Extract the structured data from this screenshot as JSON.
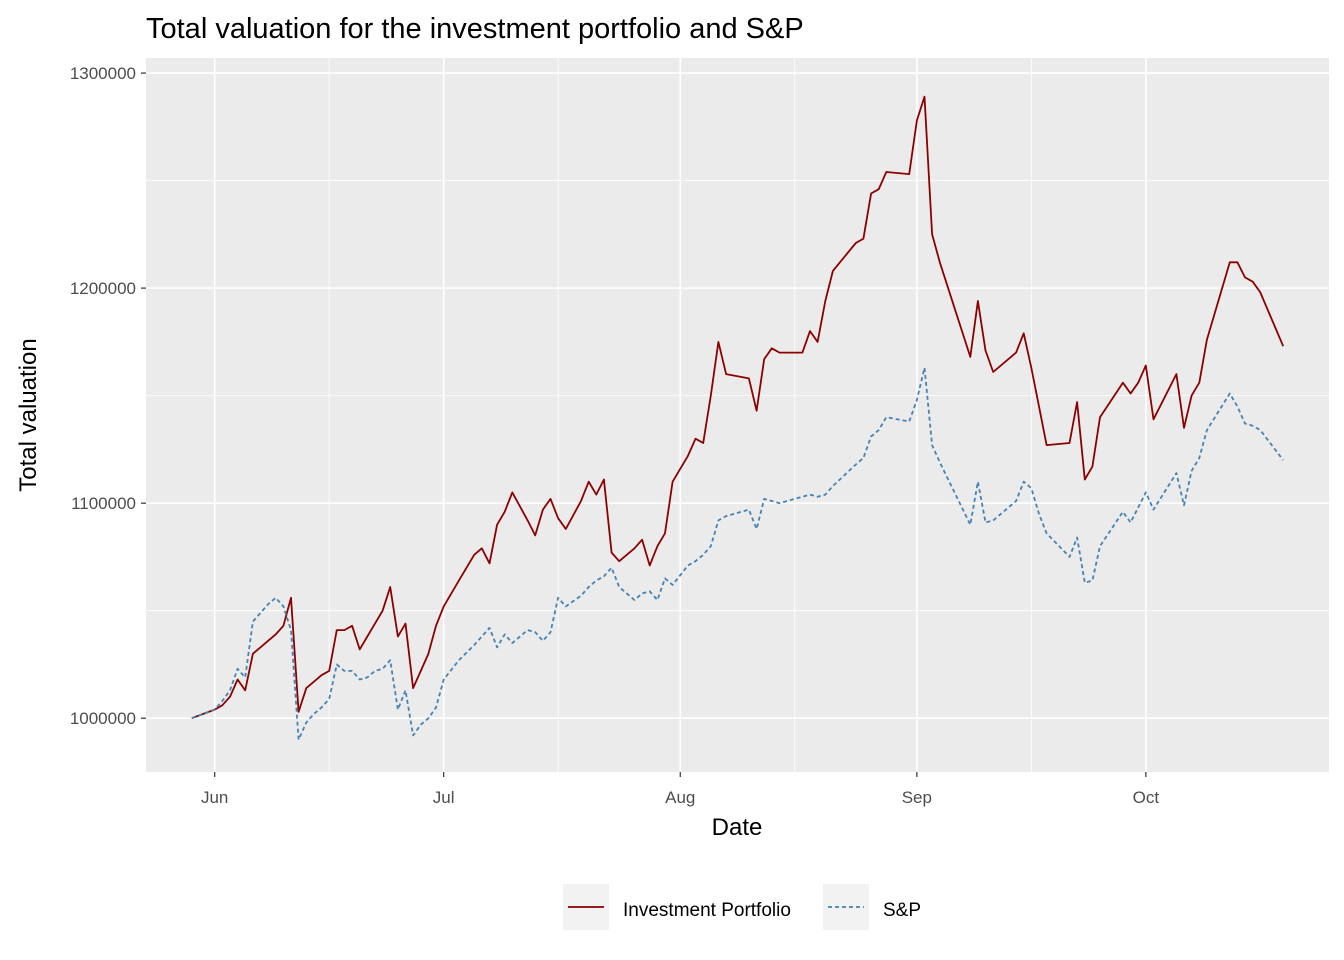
{
  "chart_data": {
    "type": "line",
    "title": "Total valuation for the investment portfolio and S&P",
    "xlabel": "Date",
    "ylabel": "Total valuation",
    "x_tick_labels": [
      {
        "date": "2020-06-01",
        "label": "Jun"
      },
      {
        "date": "2020-07-01",
        "label": "Jul"
      },
      {
        "date": "2020-08-01",
        "label": "Aug"
      },
      {
        "date": "2020-09-01",
        "label": "Sep"
      },
      {
        "date": "2020-10-01",
        "label": "Oct"
      }
    ],
    "y_ticks": [
      1000000,
      1100000,
      1200000,
      1300000
    ],
    "y_tick_labels": [
      "1000000",
      "1100000",
      "1200000",
      "1300000"
    ],
    "xlim": [
      "2020-05-23",
      "2020-10-25"
    ],
    "ylim": [
      975000,
      1307000
    ],
    "grid": true,
    "legend_position": "bottom",
    "series": [
      {
        "name": "Investment Portfolio",
        "color": "#8B0000",
        "dash": "solid",
        "points": [
          [
            "2020-05-29",
            1000000
          ],
          [
            "2020-06-01",
            1004000
          ],
          [
            "2020-06-02",
            1006000
          ],
          [
            "2020-06-03",
            1010000
          ],
          [
            "2020-06-04",
            1018000
          ],
          [
            "2020-06-05",
            1013000
          ],
          [
            "2020-06-06",
            1030000
          ],
          [
            "2020-06-07",
            1033000
          ],
          [
            "2020-06-08",
            1036000
          ],
          [
            "2020-06-09",
            1039000
          ],
          [
            "2020-06-10",
            1043000
          ],
          [
            "2020-06-11",
            1056000
          ],
          [
            "2020-06-12",
            1003000
          ],
          [
            "2020-06-13",
            1014000
          ],
          [
            "2020-06-14",
            1017000
          ],
          [
            "2020-06-15",
            1020000
          ],
          [
            "2020-06-16",
            1022000
          ],
          [
            "2020-06-17",
            1041000
          ],
          [
            "2020-06-18",
            1041000
          ],
          [
            "2020-06-19",
            1043000
          ],
          [
            "2020-06-20",
            1032000
          ],
          [
            "2020-06-21",
            1038000
          ],
          [
            "2020-06-22",
            1044000
          ],
          [
            "2020-06-23",
            1050000
          ],
          [
            "2020-06-24",
            1061000
          ],
          [
            "2020-06-25",
            1038000
          ],
          [
            "2020-06-26",
            1044000
          ],
          [
            "2020-06-27",
            1014000
          ],
          [
            "2020-06-28",
            1022000
          ],
          [
            "2020-06-29",
            1030000
          ],
          [
            "2020-06-30",
            1043000
          ],
          [
            "2020-07-01",
            1052000
          ],
          [
            "2020-07-03",
            1064000
          ],
          [
            "2020-07-05",
            1076000
          ],
          [
            "2020-07-06",
            1079000
          ],
          [
            "2020-07-07",
            1072000
          ],
          [
            "2020-07-08",
            1090000
          ],
          [
            "2020-07-09",
            1096000
          ],
          [
            "2020-07-10",
            1105000
          ],
          [
            "2020-07-12",
            1092000
          ],
          [
            "2020-07-13",
            1085000
          ],
          [
            "2020-07-14",
            1097000
          ],
          [
            "2020-07-15",
            1102000
          ],
          [
            "2020-07-16",
            1093000
          ],
          [
            "2020-07-17",
            1088000
          ],
          [
            "2020-07-19",
            1101000
          ],
          [
            "2020-07-20",
            1110000
          ],
          [
            "2020-07-21",
            1104000
          ],
          [
            "2020-07-22",
            1111000
          ],
          [
            "2020-07-23",
            1077000
          ],
          [
            "2020-07-24",
            1073000
          ],
          [
            "2020-07-26",
            1079000
          ],
          [
            "2020-07-27",
            1083000
          ],
          [
            "2020-07-28",
            1071000
          ],
          [
            "2020-07-29",
            1080000
          ],
          [
            "2020-07-30",
            1086000
          ],
          [
            "2020-07-31",
            1110000
          ],
          [
            "2020-08-02",
            1122000
          ],
          [
            "2020-08-03",
            1130000
          ],
          [
            "2020-08-04",
            1128000
          ],
          [
            "2020-08-05",
            1150000
          ],
          [
            "2020-08-06",
            1175000
          ],
          [
            "2020-08-07",
            1160000
          ],
          [
            "2020-08-10",
            1158000
          ],
          [
            "2020-08-11",
            1143000
          ],
          [
            "2020-08-12",
            1167000
          ],
          [
            "2020-08-13",
            1172000
          ],
          [
            "2020-08-14",
            1170000
          ],
          [
            "2020-08-17",
            1170000
          ],
          [
            "2020-08-18",
            1180000
          ],
          [
            "2020-08-19",
            1175000
          ],
          [
            "2020-08-20",
            1194000
          ],
          [
            "2020-08-21",
            1208000
          ],
          [
            "2020-08-24",
            1221000
          ],
          [
            "2020-08-25",
            1223000
          ],
          [
            "2020-08-26",
            1244000
          ],
          [
            "2020-08-27",
            1246000
          ],
          [
            "2020-08-28",
            1254000
          ],
          [
            "2020-08-31",
            1253000
          ],
          [
            "2020-09-01",
            1278000
          ],
          [
            "2020-09-02",
            1289000
          ],
          [
            "2020-09-03",
            1225000
          ],
          [
            "2020-09-04",
            1212000
          ],
          [
            "2020-09-08",
            1168000
          ],
          [
            "2020-09-09",
            1194000
          ],
          [
            "2020-09-10",
            1171000
          ],
          [
            "2020-09-11",
            1161000
          ],
          [
            "2020-09-14",
            1170000
          ],
          [
            "2020-09-15",
            1179000
          ],
          [
            "2020-09-16",
            1163000
          ],
          [
            "2020-09-17",
            1145000
          ],
          [
            "2020-09-18",
            1127000
          ],
          [
            "2020-09-21",
            1128000
          ],
          [
            "2020-09-22",
            1147000
          ],
          [
            "2020-09-23",
            1111000
          ],
          [
            "2020-09-24",
            1117000
          ],
          [
            "2020-09-25",
            1140000
          ],
          [
            "2020-09-28",
            1156000
          ],
          [
            "2020-09-29",
            1151000
          ],
          [
            "2020-09-30",
            1156000
          ],
          [
            "2020-10-01",
            1164000
          ],
          [
            "2020-10-02",
            1139000
          ],
          [
            "2020-10-05",
            1160000
          ],
          [
            "2020-10-06",
            1135000
          ],
          [
            "2020-10-07",
            1150000
          ],
          [
            "2020-10-08",
            1156000
          ],
          [
            "2020-10-09",
            1176000
          ],
          [
            "2020-10-12",
            1212000
          ],
          [
            "2020-10-13",
            1212000
          ],
          [
            "2020-10-14",
            1205000
          ],
          [
            "2020-10-15",
            1203000
          ],
          [
            "2020-10-16",
            1198000
          ],
          [
            "2020-10-19",
            1173000
          ]
        ]
      },
      {
        "name": "S&P",
        "color": "#4682B4",
        "dash": "dotted",
        "points": [
          [
            "2020-05-29",
            1000000
          ],
          [
            "2020-06-01",
            1004000
          ],
          [
            "2020-06-02",
            1008000
          ],
          [
            "2020-06-03",
            1013000
          ],
          [
            "2020-06-04",
            1023000
          ],
          [
            "2020-06-05",
            1019000
          ],
          [
            "2020-06-06",
            1045000
          ],
          [
            "2020-06-07",
            1049000
          ],
          [
            "2020-06-08",
            1053000
          ],
          [
            "2020-06-09",
            1056000
          ],
          [
            "2020-06-10",
            1052000
          ],
          [
            "2020-06-11",
            1041000
          ],
          [
            "2020-06-12",
            990000
          ],
          [
            "2020-06-13",
            998000
          ],
          [
            "2020-06-14",
            1002000
          ],
          [
            "2020-06-15",
            1005000
          ],
          [
            "2020-06-16",
            1009000
          ],
          [
            "2020-06-17",
            1025000
          ],
          [
            "2020-06-18",
            1022000
          ],
          [
            "2020-06-19",
            1022000
          ],
          [
            "2020-06-20",
            1018000
          ],
          [
            "2020-06-21",
            1019000
          ],
          [
            "2020-06-22",
            1022000
          ],
          [
            "2020-06-23",
            1023000
          ],
          [
            "2020-06-24",
            1027000
          ],
          [
            "2020-06-25",
            1004000
          ],
          [
            "2020-06-26",
            1013000
          ],
          [
            "2020-06-27",
            992000
          ],
          [
            "2020-06-28",
            997000
          ],
          [
            "2020-06-29",
            1000000
          ],
          [
            "2020-06-30",
            1005000
          ],
          [
            "2020-07-01",
            1018000
          ],
          [
            "2020-07-03",
            1027000
          ],
          [
            "2020-07-05",
            1034000
          ],
          [
            "2020-07-06",
            1038000
          ],
          [
            "2020-07-07",
            1042000
          ],
          [
            "2020-07-08",
            1033000
          ],
          [
            "2020-07-09",
            1039000
          ],
          [
            "2020-07-10",
            1035000
          ],
          [
            "2020-07-12",
            1041000
          ],
          [
            "2020-07-13",
            1040000
          ],
          [
            "2020-07-14",
            1036000
          ],
          [
            "2020-07-15",
            1040000
          ],
          [
            "2020-07-16",
            1056000
          ],
          [
            "2020-07-17",
            1052000
          ],
          [
            "2020-07-19",
            1057000
          ],
          [
            "2020-07-20",
            1061000
          ],
          [
            "2020-07-21",
            1064000
          ],
          [
            "2020-07-22",
            1066000
          ],
          [
            "2020-07-23",
            1070000
          ],
          [
            "2020-07-24",
            1061000
          ],
          [
            "2020-07-26",
            1055000
          ],
          [
            "2020-07-27",
            1058000
          ],
          [
            "2020-07-28",
            1059000
          ],
          [
            "2020-07-29",
            1055000
          ],
          [
            "2020-07-30",
            1065000
          ],
          [
            "2020-07-31",
            1062000
          ],
          [
            "2020-08-02",
            1071000
          ],
          [
            "2020-08-03",
            1073000
          ],
          [
            "2020-08-04",
            1076000
          ],
          [
            "2020-08-05",
            1080000
          ],
          [
            "2020-08-06",
            1092000
          ],
          [
            "2020-08-07",
            1094000
          ],
          [
            "2020-08-10",
            1097000
          ],
          [
            "2020-08-11",
            1088000
          ],
          [
            "2020-08-12",
            1102000
          ],
          [
            "2020-08-13",
            1101000
          ],
          [
            "2020-08-14",
            1100000
          ],
          [
            "2020-08-17",
            1103000
          ],
          [
            "2020-08-18",
            1104000
          ],
          [
            "2020-08-19",
            1103000
          ],
          [
            "2020-08-20",
            1104000
          ],
          [
            "2020-08-21",
            1108000
          ],
          [
            "2020-08-24",
            1118000
          ],
          [
            "2020-08-25",
            1121000
          ],
          [
            "2020-08-26",
            1131000
          ],
          [
            "2020-08-27",
            1134000
          ],
          [
            "2020-08-28",
            1140000
          ],
          [
            "2020-08-31",
            1138000
          ],
          [
            "2020-09-01",
            1148000
          ],
          [
            "2020-09-02",
            1163000
          ],
          [
            "2020-09-03",
            1127000
          ],
          [
            "2020-09-04",
            1119000
          ],
          [
            "2020-09-08",
            1090000
          ],
          [
            "2020-09-09",
            1110000
          ],
          [
            "2020-09-10",
            1091000
          ],
          [
            "2020-09-11",
            1092000
          ],
          [
            "2020-09-14",
            1101000
          ],
          [
            "2020-09-15",
            1110000
          ],
          [
            "2020-09-16",
            1107000
          ],
          [
            "2020-09-17",
            1095000
          ],
          [
            "2020-09-18",
            1086000
          ],
          [
            "2020-09-21",
            1075000
          ],
          [
            "2020-09-22",
            1084000
          ],
          [
            "2020-09-23",
            1063000
          ],
          [
            "2020-09-24",
            1064000
          ],
          [
            "2020-09-25",
            1080000
          ],
          [
            "2020-09-28",
            1096000
          ],
          [
            "2020-09-29",
            1091000
          ],
          [
            "2020-09-30",
            1098000
          ],
          [
            "2020-10-01",
            1105000
          ],
          [
            "2020-10-02",
            1097000
          ],
          [
            "2020-10-05",
            1114000
          ],
          [
            "2020-10-06",
            1099000
          ],
          [
            "2020-10-07",
            1115000
          ],
          [
            "2020-10-08",
            1121000
          ],
          [
            "2020-10-09",
            1134000
          ],
          [
            "2020-10-12",
            1151000
          ],
          [
            "2020-10-13",
            1145000
          ],
          [
            "2020-10-14",
            1137000
          ],
          [
            "2020-10-15",
            1136000
          ],
          [
            "2020-10-16",
            1134000
          ],
          [
            "2020-10-19",
            1120000
          ]
        ]
      }
    ]
  }
}
